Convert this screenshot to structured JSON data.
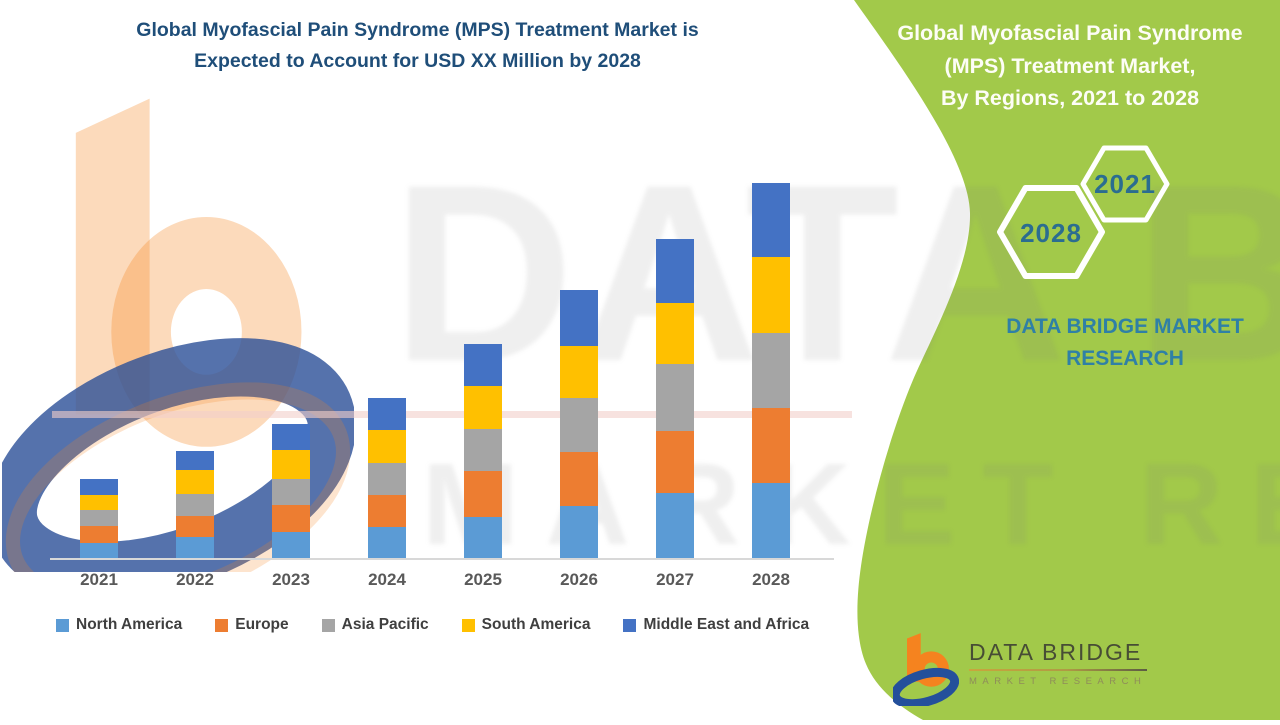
{
  "page": {
    "main_title": {
      "line1": "Global Myofascial Pain Syndrome (MPS) Treatment Market is",
      "line2": "Expected to Account for USD XX Million by 2028"
    },
    "right_panel": {
      "title_line1": "Global Myofascial Pain Syndrome",
      "title_line2": "(MPS) Treatment Market,",
      "title_line3": "By Regions, 2021 to 2028",
      "hex_year_front": "2021",
      "hex_year_back": "2028",
      "brand_line1": "DATA BRIDGE MARKET",
      "brand_line2": "RESEARCH"
    },
    "footer_logo": {
      "name": "DATA BRIDGE",
      "tagline": "MARKET RESEARCH"
    },
    "watermark": {
      "line1": "DATA BRIDGE",
      "line2": "MARKET RESEARCH"
    }
  },
  "colors": {
    "panel_green": "#a2c94a",
    "title_navy": "#1f4e79",
    "hex_text": "#2b6d90",
    "brand_teal": "#2f80a6",
    "axis_label": "#595959",
    "legend_text": "#3f3f3f",
    "logo_orange": "#f5831f",
    "logo_blue": "#24509b"
  },
  "chart_data": {
    "type": "bar",
    "stacked": true,
    "title": "Global Myofascial Pain Syndrome (MPS) Treatment Market, By Regions, 2021 to 2028",
    "value_unit_label": "USD XX Million",
    "categories": [
      "2021",
      "2022",
      "2023",
      "2024",
      "2025",
      "2026",
      "2027",
      "2028"
    ],
    "series": [
      {
        "name": "North America",
        "color": "#5b9bd5",
        "values": [
          16,
          22,
          27,
          32,
          42,
          53,
          66,
          76
        ]
      },
      {
        "name": "Europe",
        "color": "#ed7d31",
        "values": [
          17,
          21,
          27,
          32,
          46,
          54,
          62,
          75
        ]
      },
      {
        "name": "Asia Pacific",
        "color": "#a5a5a5",
        "values": [
          16,
          22,
          26,
          32,
          42,
          54,
          67,
          75
        ]
      },
      {
        "name": "South America",
        "color": "#ffc000",
        "values": [
          15,
          24,
          29,
          33,
          43,
          52,
          61,
          76
        ]
      },
      {
        "name": "Middle East and Africa",
        "color": "#4472c4",
        "values": [
          16,
          19,
          26,
          32,
          42,
          56,
          64,
          74
        ]
      }
    ],
    "totals_relative": [
      80,
      108,
      135,
      161,
      215,
      269,
      320,
      376
    ],
    "xlabel": "",
    "ylabel": "",
    "grid": false,
    "legend_position": "bottom"
  }
}
